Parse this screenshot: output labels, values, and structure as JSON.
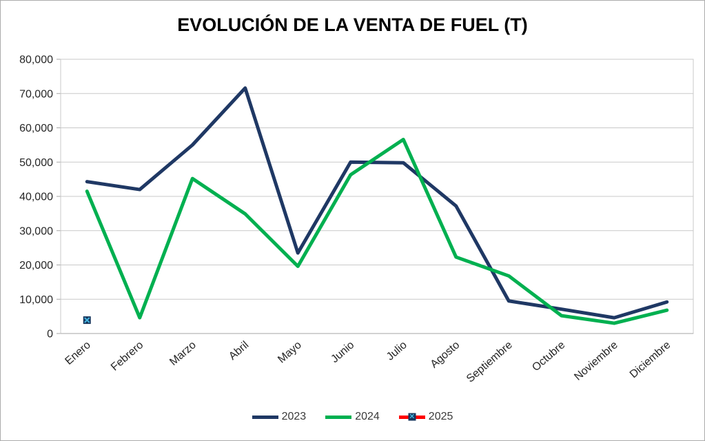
{
  "chart_data": {
    "type": "line",
    "title": "EVOLUCIÓN DE LA VENTA DE FUEL (T)",
    "xlabel": "",
    "ylabel": "",
    "ylim": [
      0,
      80000
    ],
    "ytick_step": 10000,
    "ytick_labels": [
      "0",
      "10,000",
      "20,000",
      "30,000",
      "40,000",
      "50,000",
      "60,000",
      "70,000",
      "80,000"
    ],
    "grid": true,
    "legend_position": "bottom",
    "categories": [
      "Enero",
      "Febrero",
      "Marzo",
      "Abril",
      "Mayo",
      "Junio",
      "Julio",
      "Agosto",
      "Septiembre",
      "Octubre",
      "Noviembre",
      "Diciembre"
    ],
    "series": [
      {
        "name": "2023",
        "color": "#1F3864",
        "values": [
          44300,
          42000,
          55000,
          71600,
          23500,
          50000,
          49800,
          37200,
          9500,
          7100,
          4600,
          9200
        ]
      },
      {
        "name": "2024",
        "color": "#00B050",
        "values": [
          41500,
          4600,
          45200,
          34900,
          19600,
          46300,
          56600,
          22300,
          16800,
          5200,
          3000,
          6800
        ]
      },
      {
        "name": "2025",
        "color": "#FF0000",
        "marker": "x-square",
        "marker_fill": "#17375E",
        "marker_x_color": "#45B5E0",
        "values": [
          3900,
          null,
          null,
          null,
          null,
          null,
          null,
          null,
          null,
          null,
          null,
          null
        ]
      }
    ],
    "colors": {
      "gridline": "#C9C9C9",
      "axis": "#A6A6A6",
      "tick_label": "#262626"
    }
  },
  "icons": {
    "x_marker": "✕"
  }
}
